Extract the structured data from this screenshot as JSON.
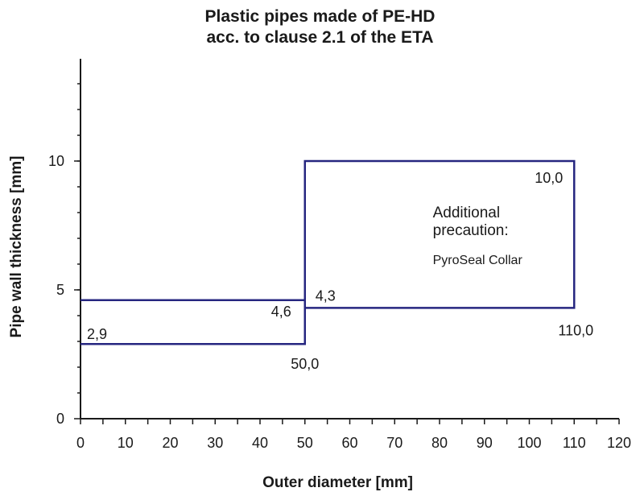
{
  "chart_data": {
    "type": "line",
    "title": [
      "Plastic pipes made of PE-HD",
      "acc. to clause 2.1 of the ETA"
    ],
    "xlabel": "Outer diameter [mm]",
    "ylabel": "Pipe wall thickness [mm]",
    "xlim": [
      0,
      120
    ],
    "ylim": [
      0,
      14
    ],
    "x_ticks": [
      0,
      10,
      20,
      30,
      40,
      50,
      60,
      70,
      80,
      90,
      100,
      110,
      120
    ],
    "y_ticks": [
      0,
      5,
      10
    ],
    "grid": false,
    "series": [
      {
        "color": "#262680",
        "points": [
          [
            0,
            4.6
          ],
          [
            50,
            4.6
          ],
          [
            50,
            2.9
          ],
          [
            0,
            2.9
          ]
        ]
      },
      {
        "color": "#262680",
        "points": [
          [
            50,
            4.3
          ],
          [
            50,
            10.0
          ],
          [
            110,
            10.0
          ],
          [
            110,
            4.3
          ],
          [
            50,
            4.3
          ]
        ]
      }
    ],
    "data_labels": [
      {
        "text": "2,9",
        "x": 0,
        "y": 2.9
      },
      {
        "text": "4,6",
        "x": 50,
        "y": 4.6
      },
      {
        "text": "50,0",
        "x": 50,
        "y": 2.9
      },
      {
        "text": "4,3",
        "x": 50,
        "y": 4.3
      },
      {
        "text": "10,0",
        "x": 110,
        "y": 10.0
      },
      {
        "text": "110,0",
        "x": 110,
        "y": 4.3
      }
    ],
    "annotation": {
      "lines": [
        "Additional",
        "precaution:"
      ],
      "detail": "PyroSeal Collar"
    }
  }
}
